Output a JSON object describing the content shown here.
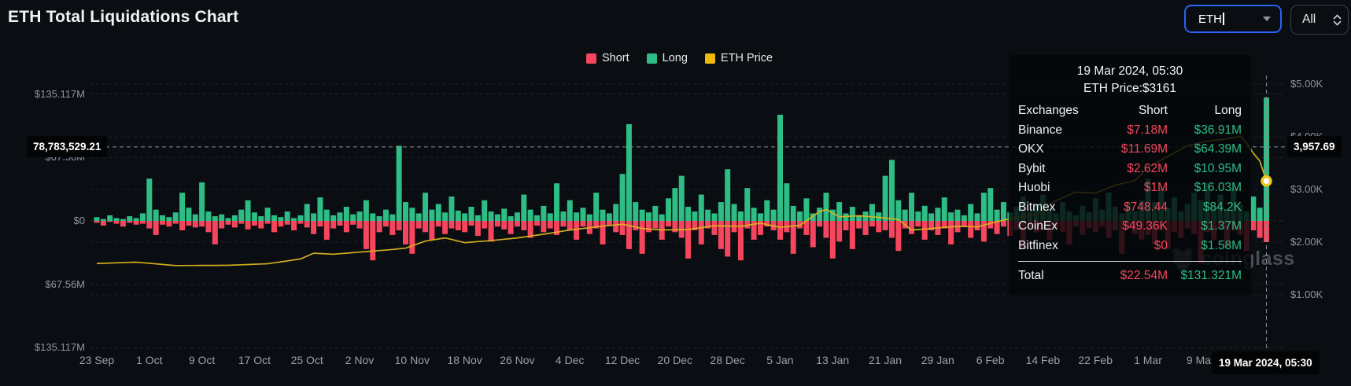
{
  "header": {
    "title": "ETH Total Liquidations Chart",
    "symbol_select": {
      "value": "ETH"
    },
    "range_select": {
      "value": "All"
    }
  },
  "legend": [
    {
      "label": "Short",
      "color": "#f6465d"
    },
    {
      "label": "Long",
      "color": "#2ebd85"
    },
    {
      "label": "ETH Price",
      "color": "#f0b90b"
    }
  ],
  "axes": {
    "left_labels": [
      "$135.117M",
      "$67.56M",
      "$0",
      "$67.56M",
      "$135.117M"
    ],
    "right_labels": [
      "$5.00K",
      "$4.00K",
      "$3.00K",
      "$2.00K",
      "$1.00K"
    ],
    "x_labels": [
      "23 Sep",
      "1 Oct",
      "9 Oct",
      "17 Oct",
      "25 Oct",
      "2 Nov",
      "10 Nov",
      "18 Nov",
      "26 Nov",
      "4 Dec",
      "12 Dec",
      "20 Dec",
      "28 Dec",
      "5 Jan",
      "13 Jan",
      "21 Jan",
      "29 Jan",
      "6 Feb",
      "14 Feb",
      "22 Feb",
      "1 Mar",
      "9 Mar"
    ]
  },
  "crosshair": {
    "left_value": "78,783,529.21",
    "right_value": "3,957.69",
    "date_value": "19 Mar 2024, 05:30"
  },
  "tooltip": {
    "date": "19 Mar 2024, 05:30",
    "price_line": "ETH Price:$3161",
    "columns": [
      "Exchanges",
      "Short",
      "Long"
    ],
    "rows": [
      [
        "Binance",
        "$7.18M",
        "$36.91M"
      ],
      [
        "OKX",
        "$11.69M",
        "$64.39M"
      ],
      [
        "Bybit",
        "$2.62M",
        "$10.95M"
      ],
      [
        "Huobi",
        "$1M",
        "$16.03M"
      ],
      [
        "Bitmex",
        "$748.44",
        "$84.2K"
      ],
      [
        "CoinEx",
        "$49.36K",
        "$1.37M"
      ],
      [
        "Bitfinex",
        "$0",
        "$1.58M"
      ]
    ],
    "total": [
      "Total",
      "$22.54M",
      "$131.321M"
    ]
  },
  "watermark": {
    "text": "coinglass"
  },
  "chart_data": {
    "type": "bar",
    "subtype": "mirrored-bars-with-price-line",
    "title": "ETH Total Liquidations Chart",
    "unit": "USD millions (liquidations), USD (price)",
    "x": {
      "start": "23 Sep",
      "end": "19 Mar 2024",
      "days": 179,
      "tick_every_days": 8
    },
    "left_axis": {
      "levels_m": [
        135.117,
        67.56,
        0,
        -67.56,
        -135.117
      ]
    },
    "right_axis": {
      "levels_usd": [
        5000,
        4000,
        3000,
        2000,
        1000
      ]
    },
    "legend_position": "top-center",
    "grid": "dashed-horizontal",
    "highlighted": {
      "day": 178,
      "date": "19 Mar 2024, 05:30",
      "price": 3161,
      "long_m": 131.321,
      "short_m": 22.54
    },
    "series": [
      {
        "name": "Long",
        "color": "#2ebd85",
        "direction": "up",
        "values_m": [
          4,
          2,
          6,
          3,
          2,
          5,
          3,
          8,
          45,
          12,
          6,
          4,
          9,
          30,
          14,
          7,
          41,
          10,
          5,
          7,
          3,
          6,
          12,
          22,
          9,
          5,
          14,
          6,
          4,
          10,
          3,
          6,
          18,
          8,
          25,
          12,
          6,
          9,
          15,
          7,
          10,
          22,
          8,
          5,
          12,
          7,
          80,
          20,
          14,
          8,
          30,
          12,
          18,
          9,
          26,
          11,
          8,
          15,
          6,
          22,
          10,
          7,
          13,
          5,
          9,
          28,
          12,
          6,
          16,
          8,
          40,
          10,
          22,
          9,
          14,
          7,
          30,
          12,
          8,
          18,
          50,
          103,
          20,
          12,
          9,
          16,
          7,
          24,
          35,
          48,
          15,
          10,
          28,
          12,
          8,
          20,
          55,
          18,
          10,
          35,
          14,
          8,
          22,
          12,
          113,
          40,
          16,
          10,
          24,
          8,
          14,
          30,
          12,
          20,
          8,
          15,
          6,
          10,
          18,
          9,
          48,
          65,
          22,
          12,
          30,
          10,
          16,
          8,
          14,
          25,
          9,
          12,
          6,
          18,
          8,
          30,
          35,
          12,
          20,
          9,
          15,
          26,
          10,
          18,
          28,
          14,
          8,
          20,
          10,
          6,
          16,
          9,
          24,
          12,
          30,
          15,
          8,
          18,
          10,
          22,
          45,
          20,
          35,
          14,
          25,
          10,
          18,
          30,
          22,
          40,
          15,
          28,
          12,
          35,
          18,
          10,
          26,
          14,
          131.321
        ]
      },
      {
        "name": "Short",
        "color": "#f6465d",
        "direction": "down",
        "values_m": [
          2,
          5,
          1,
          3,
          6,
          2,
          4,
          3,
          8,
          15,
          4,
          6,
          3,
          10,
          5,
          7,
          6,
          12,
          25,
          8,
          4,
          7,
          3,
          9,
          5,
          8,
          3,
          12,
          6,
          4,
          10,
          3,
          7,
          14,
          6,
          20,
          8,
          5,
          12,
          4,
          8,
          30,
          42,
          12,
          6,
          15,
          10,
          25,
          35,
          8,
          12,
          20,
          6,
          14,
          8,
          10,
          12,
          5,
          16,
          8,
          22,
          6,
          9,
          14,
          6,
          10,
          18,
          5,
          12,
          8,
          15,
          6,
          10,
          20,
          6,
          14,
          8,
          25,
          5,
          12,
          15,
          30,
          10,
          35,
          12,
          8,
          20,
          6,
          12,
          18,
          40,
          10,
          25,
          8,
          15,
          30,
          38,
          12,
          42,
          8,
          20,
          15,
          6,
          10,
          20,
          12,
          35,
          8,
          15,
          28,
          6,
          18,
          40,
          22,
          10,
          30,
          8,
          15,
          6,
          12,
          10,
          18,
          32,
          8,
          14,
          6,
          20,
          10,
          15,
          8,
          25,
          12,
          6,
          18,
          10,
          22,
          8,
          14,
          6,
          16,
          10,
          30,
          8,
          12,
          10,
          20,
          8,
          12,
          25,
          6,
          15,
          8,
          12,
          6,
          18,
          10,
          35,
          8,
          14,
          20,
          15,
          25,
          10,
          30,
          12,
          18,
          8,
          14,
          45,
          12,
          20,
          8,
          28,
          10,
          15,
          32,
          10,
          18,
          22.54
        ]
      }
    ],
    "price": {
      "name": "ETH Price",
      "color": "#d9b41f",
      "points_day_usd": [
        [
          0,
          1595
        ],
        [
          6,
          1620
        ],
        [
          12,
          1555
        ],
        [
          20,
          1560
        ],
        [
          26,
          1590
        ],
        [
          31,
          1680
        ],
        [
          33,
          1790
        ],
        [
          36,
          1770
        ],
        [
          40,
          1810
        ],
        [
          44,
          1850
        ],
        [
          47,
          1885
        ],
        [
          50,
          2020
        ],
        [
          53,
          2080
        ],
        [
          56,
          1990
        ],
        [
          60,
          2030
        ],
        [
          64,
          2080
        ],
        [
          68,
          2150
        ],
        [
          72,
          2230
        ],
        [
          76,
          2290
        ],
        [
          80,
          2340
        ],
        [
          83,
          2260
        ],
        [
          86,
          2230
        ],
        [
          90,
          2240
        ],
        [
          94,
          2310
        ],
        [
          98,
          2300
        ],
        [
          101,
          2360
        ],
        [
          104,
          2280
        ],
        [
          107,
          2320
        ],
        [
          110,
          2580
        ],
        [
          111,
          2620
        ],
        [
          113,
          2480
        ],
        [
          116,
          2500
        ],
        [
          119,
          2470
        ],
        [
          122,
          2430
        ],
        [
          124,
          2230
        ],
        [
          127,
          2260
        ],
        [
          131,
          2300
        ],
        [
          134,
          2290
        ],
        [
          137,
          2390
        ],
        [
          140,
          2470
        ],
        [
          143,
          2520
        ],
        [
          146,
          2790
        ],
        [
          149,
          2950
        ],
        [
          152,
          2930
        ],
        [
          155,
          3080
        ],
        [
          158,
          3170
        ],
        [
          160,
          3420
        ],
        [
          163,
          3630
        ],
        [
          166,
          3830
        ],
        [
          169,
          3920
        ],
        [
          172,
          3960
        ],
        [
          174,
          4010
        ],
        [
          175,
          3880
        ],
        [
          176,
          3690
        ],
        [
          177,
          3540
        ],
        [
          178,
          3161
        ]
      ]
    }
  }
}
